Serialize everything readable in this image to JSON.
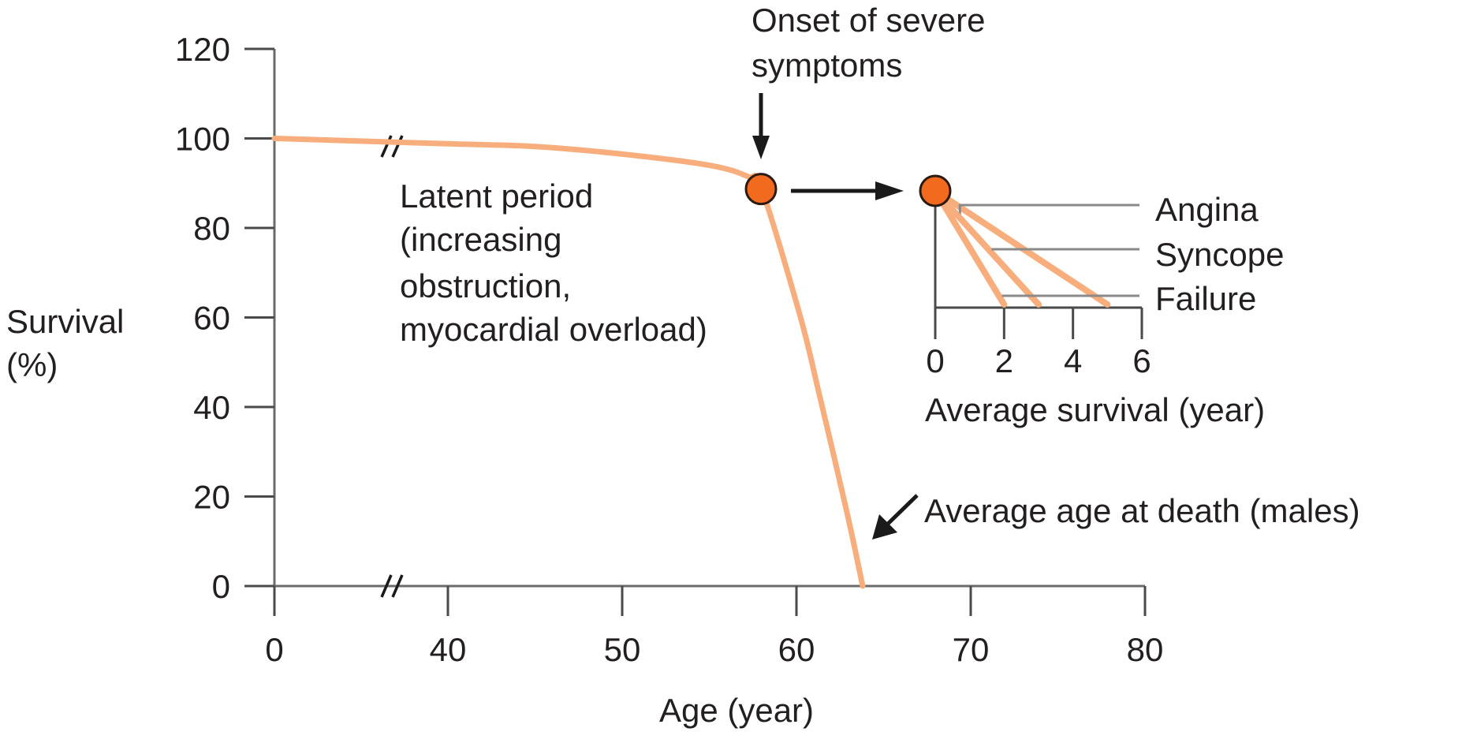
{
  "chart_data": [
    {
      "type": "line",
      "title": "",
      "xlabel": "Age (year)",
      "ylabel": "Survival (%)",
      "ylabel_lines": [
        "Survival",
        "(%)"
      ],
      "xlim": [
        0,
        80
      ],
      "ylim": [
        0,
        120
      ],
      "axis_break": "between 0 and 40 on x-axis",
      "x_ticks": [
        0,
        40,
        50,
        60,
        70,
        80
      ],
      "y_ticks": [
        0,
        20,
        40,
        60,
        80,
        100,
        120
      ],
      "grid": false,
      "series": [
        {
          "name": "Survival",
          "color": "#f7ae7c",
          "points": [
            {
              "x": 0,
              "y": 100
            },
            {
              "x": 40,
              "y": 98.8
            },
            {
              "x": 45,
              "y": 98.2
            },
            {
              "x": 50,
              "y": 96.5
            },
            {
              "x": 55,
              "y": 94
            },
            {
              "x": 57.2,
              "y": 91.5
            },
            {
              "x": 58,
              "y": 88.7
            },
            {
              "x": 60.2,
              "y": 60.5
            },
            {
              "x": 61.3,
              "y": 43
            },
            {
              "x": 62.9,
              "y": 16.4
            },
            {
              "x": 63.8,
              "y": 0
            }
          ]
        }
      ],
      "markers": [
        {
          "name": "onset",
          "x": 58,
          "y": 88.7,
          "color": "#f26a1e"
        }
      ],
      "annotations": [
        {
          "id": "onset",
          "lines": [
            "Onset of severe",
            "symptoms"
          ]
        },
        {
          "id": "latent",
          "lines": [
            "Latent period",
            "(increasing",
            "obstruction,",
            "myocardial overload)"
          ]
        },
        {
          "id": "death",
          "lines": [
            "Average age at death (males)"
          ]
        }
      ]
    },
    {
      "type": "line",
      "title": "",
      "xlabel": "Average survival (year)",
      "ylabel": "",
      "xlim": [
        0,
        6
      ],
      "x_ticks": [
        0,
        2,
        4,
        6
      ],
      "grid": false,
      "series": [
        {
          "name": "Angina",
          "survival_years": 5,
          "color": "#f7ae7c"
        },
        {
          "name": "Syncope",
          "survival_years": 3,
          "color": "#f7ae7c"
        },
        {
          "name": "Failure",
          "survival_years": 2,
          "color": "#f7ae7c"
        }
      ],
      "start_marker_color": "#f26a1e"
    }
  ]
}
